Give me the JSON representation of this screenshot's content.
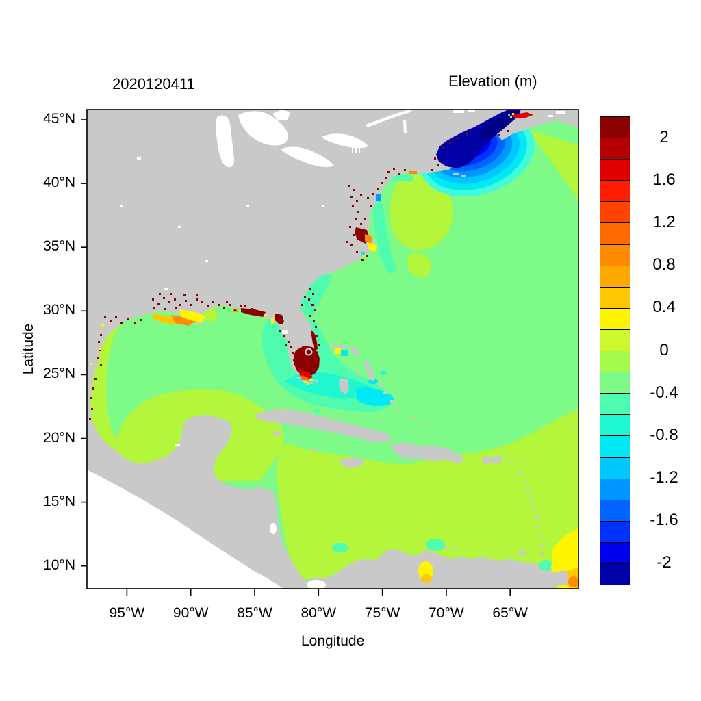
{
  "page": {
    "background": "#FFFFFF"
  },
  "header": {
    "left_title": "2020120411",
    "right_title": "Elevation (m)"
  },
  "axes": {
    "x_label": "Longitude",
    "y_label": "Latitude",
    "x_ticks": [
      "95°W",
      "90°W",
      "85°W",
      "80°W",
      "75°W",
      "70°W",
      "65°W"
    ],
    "y_ticks": [
      "45°N",
      "40°N",
      "35°N",
      "30°N",
      "25°N",
      "20°N",
      "15°N",
      "10°N"
    ]
  },
  "colorbar": {
    "title": "Elevation (m)",
    "tick_labels": [
      "2",
      "1.6",
      "1.2",
      "0.8",
      "0.4",
      "0",
      "-0.4",
      "-0.8",
      "-1.2",
      "-1.6",
      "-2"
    ],
    "colors_top_to_bottom": [
      "#8B0000",
      "#B40000",
      "#E10000",
      "#FF1C00",
      "#FF4300",
      "#FF6A00",
      "#FF8C00",
      "#FFA800",
      "#FFC800",
      "#FFF500",
      "#CDF830",
      "#A5FA50",
      "#7DFA87",
      "#4FFBAE",
      "#1EF7D0",
      "#00E9F5",
      "#00C8FF",
      "#0096FF",
      "#0064FF",
      "#0032FF",
      "#0000F0",
      "#0000A8"
    ]
  },
  "chart_data": {
    "type": "heatmap",
    "title": "2020120411",
    "colorbar_title": "Elevation (m)",
    "xlabel": "Longitude",
    "ylabel": "Latitude",
    "x_ticks": [
      "95°W",
      "90°W",
      "85°W",
      "80°W",
      "75°W",
      "70°W",
      "65°W"
    ],
    "y_ticks": [
      "45°N",
      "40°N",
      "35°N",
      "30°N",
      "25°N",
      "20°N",
      "15°N",
      "10°N"
    ],
    "lon_range_deg_west": [
      98.2,
      59.6
    ],
    "lat_range_deg_north": [
      8.1,
      45.8
    ],
    "value_units": "m",
    "value_range": [
      -2.2,
      2.2
    ],
    "value_step": 0.2,
    "legend_tick_values": [
      2,
      1.6,
      1.2,
      0.8,
      0.4,
      0,
      -0.4,
      -0.8,
      -1.2,
      -1.6,
      -2
    ],
    "land_color": "#C9C9C9",
    "no_data_color": "#FFFFFF",
    "grid": false,
    "legend_position": "right",
    "features": [
      {
        "region": "Open Atlantic, Gulf of Mexico and northern Caribbean (most of domain)",
        "elevation_m": "-0.2 to 0"
      },
      {
        "region": "Southern Caribbean Sea, Bay of Campeche, western Gulf fringe",
        "elevation_m": "0 to 0.4"
      },
      {
        "region": "West Florida shelf, Florida Bay approaches, Bahamas banks",
        "elevation_m": "-0.8 to -0.2"
      },
      {
        "region": "Gulf of Maine / Bay of Fundy low-tide anomaly (concentric rings)",
        "elevation_m": "-0.4 down to below -2.2"
      },
      {
        "region": "Minas Basin streak at head of Bay of Fundy (Nova Scotia)",
        "elevation_m": "about +1.4 to +2"
      },
      {
        "region": "South Florida / Everglades wetted cells",
        "elevation_m": "above +2 (dark red) with +0.4 to +1.6 fringe"
      },
      {
        "region": "Louisiana-Mississippi coastal marshes",
        "elevation_m": "+0.4 to +1.2 patches, above +2 specks"
      },
      {
        "region": "Chesapeake Bay / Pamlico Sound coastal cells",
        "elevation_m": "+0.4 to above +2 specks"
      },
      {
        "region": "Scattered coastal cells (Texas, Mexico, Georgia, New England coasts)",
        "elevation_m": "above +2 (dark red specks)"
      },
      {
        "region": "Lake Maracaibo (Venezuela)",
        "elevation_m": "+0.4 to +0.8"
      },
      {
        "region": "Southeast corner near Trinidad / Orinoco",
        "elevation_m": "+0.4 to +1.0"
      },
      {
        "region": "Land mask",
        "elevation_m": "gray (no value)"
      },
      {
        "region": "Great Lakes / outside model domain (Pacific side)",
        "elevation_m": "white (no data)"
      }
    ]
  }
}
